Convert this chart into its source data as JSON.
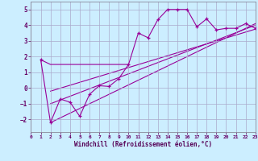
{
  "xlabel": "Windchill (Refroidissement éolien,°C)",
  "bg_color": "#cceeff",
  "grid_color": "#aaaacc",
  "line_color": "#990099",
  "xlim": [
    0,
    23
  ],
  "ylim": [
    -2.8,
    5.5
  ],
  "xticks": [
    0,
    1,
    2,
    3,
    4,
    5,
    6,
    7,
    8,
    9,
    10,
    11,
    12,
    13,
    14,
    15,
    16,
    17,
    18,
    19,
    20,
    21,
    22,
    23
  ],
  "yticks": [
    -2,
    -1,
    0,
    1,
    2,
    3,
    4,
    5
  ],
  "flat_x": [
    1,
    2,
    3,
    4,
    5,
    6,
    7,
    8,
    9,
    10
  ],
  "flat_y": [
    1.8,
    1.5,
    1.5,
    1.5,
    1.5,
    1.5,
    1.5,
    1.5,
    1.5,
    1.5
  ],
  "main_x": [
    1,
    2,
    3,
    4,
    5,
    6,
    7,
    8,
    9,
    10,
    11,
    12,
    13,
    14,
    15,
    16,
    17,
    18,
    19,
    20,
    21,
    22,
    23
  ],
  "main_y": [
    1.8,
    -2.2,
    -0.7,
    -0.9,
    -1.8,
    -0.4,
    0.15,
    0.1,
    0.6,
    1.5,
    3.5,
    3.2,
    4.35,
    5.0,
    5.0,
    5.0,
    3.9,
    4.4,
    3.7,
    3.8,
    3.8,
    4.1,
    3.8
  ],
  "trend1_x": [
    2,
    23
  ],
  "trend1_y": [
    -2.2,
    4.1
  ],
  "trend2_x": [
    2,
    23
  ],
  "trend2_y": [
    -1.0,
    4.0
  ],
  "trend3_x": [
    2,
    23
  ],
  "trend3_y": [
    -0.2,
    3.75
  ]
}
